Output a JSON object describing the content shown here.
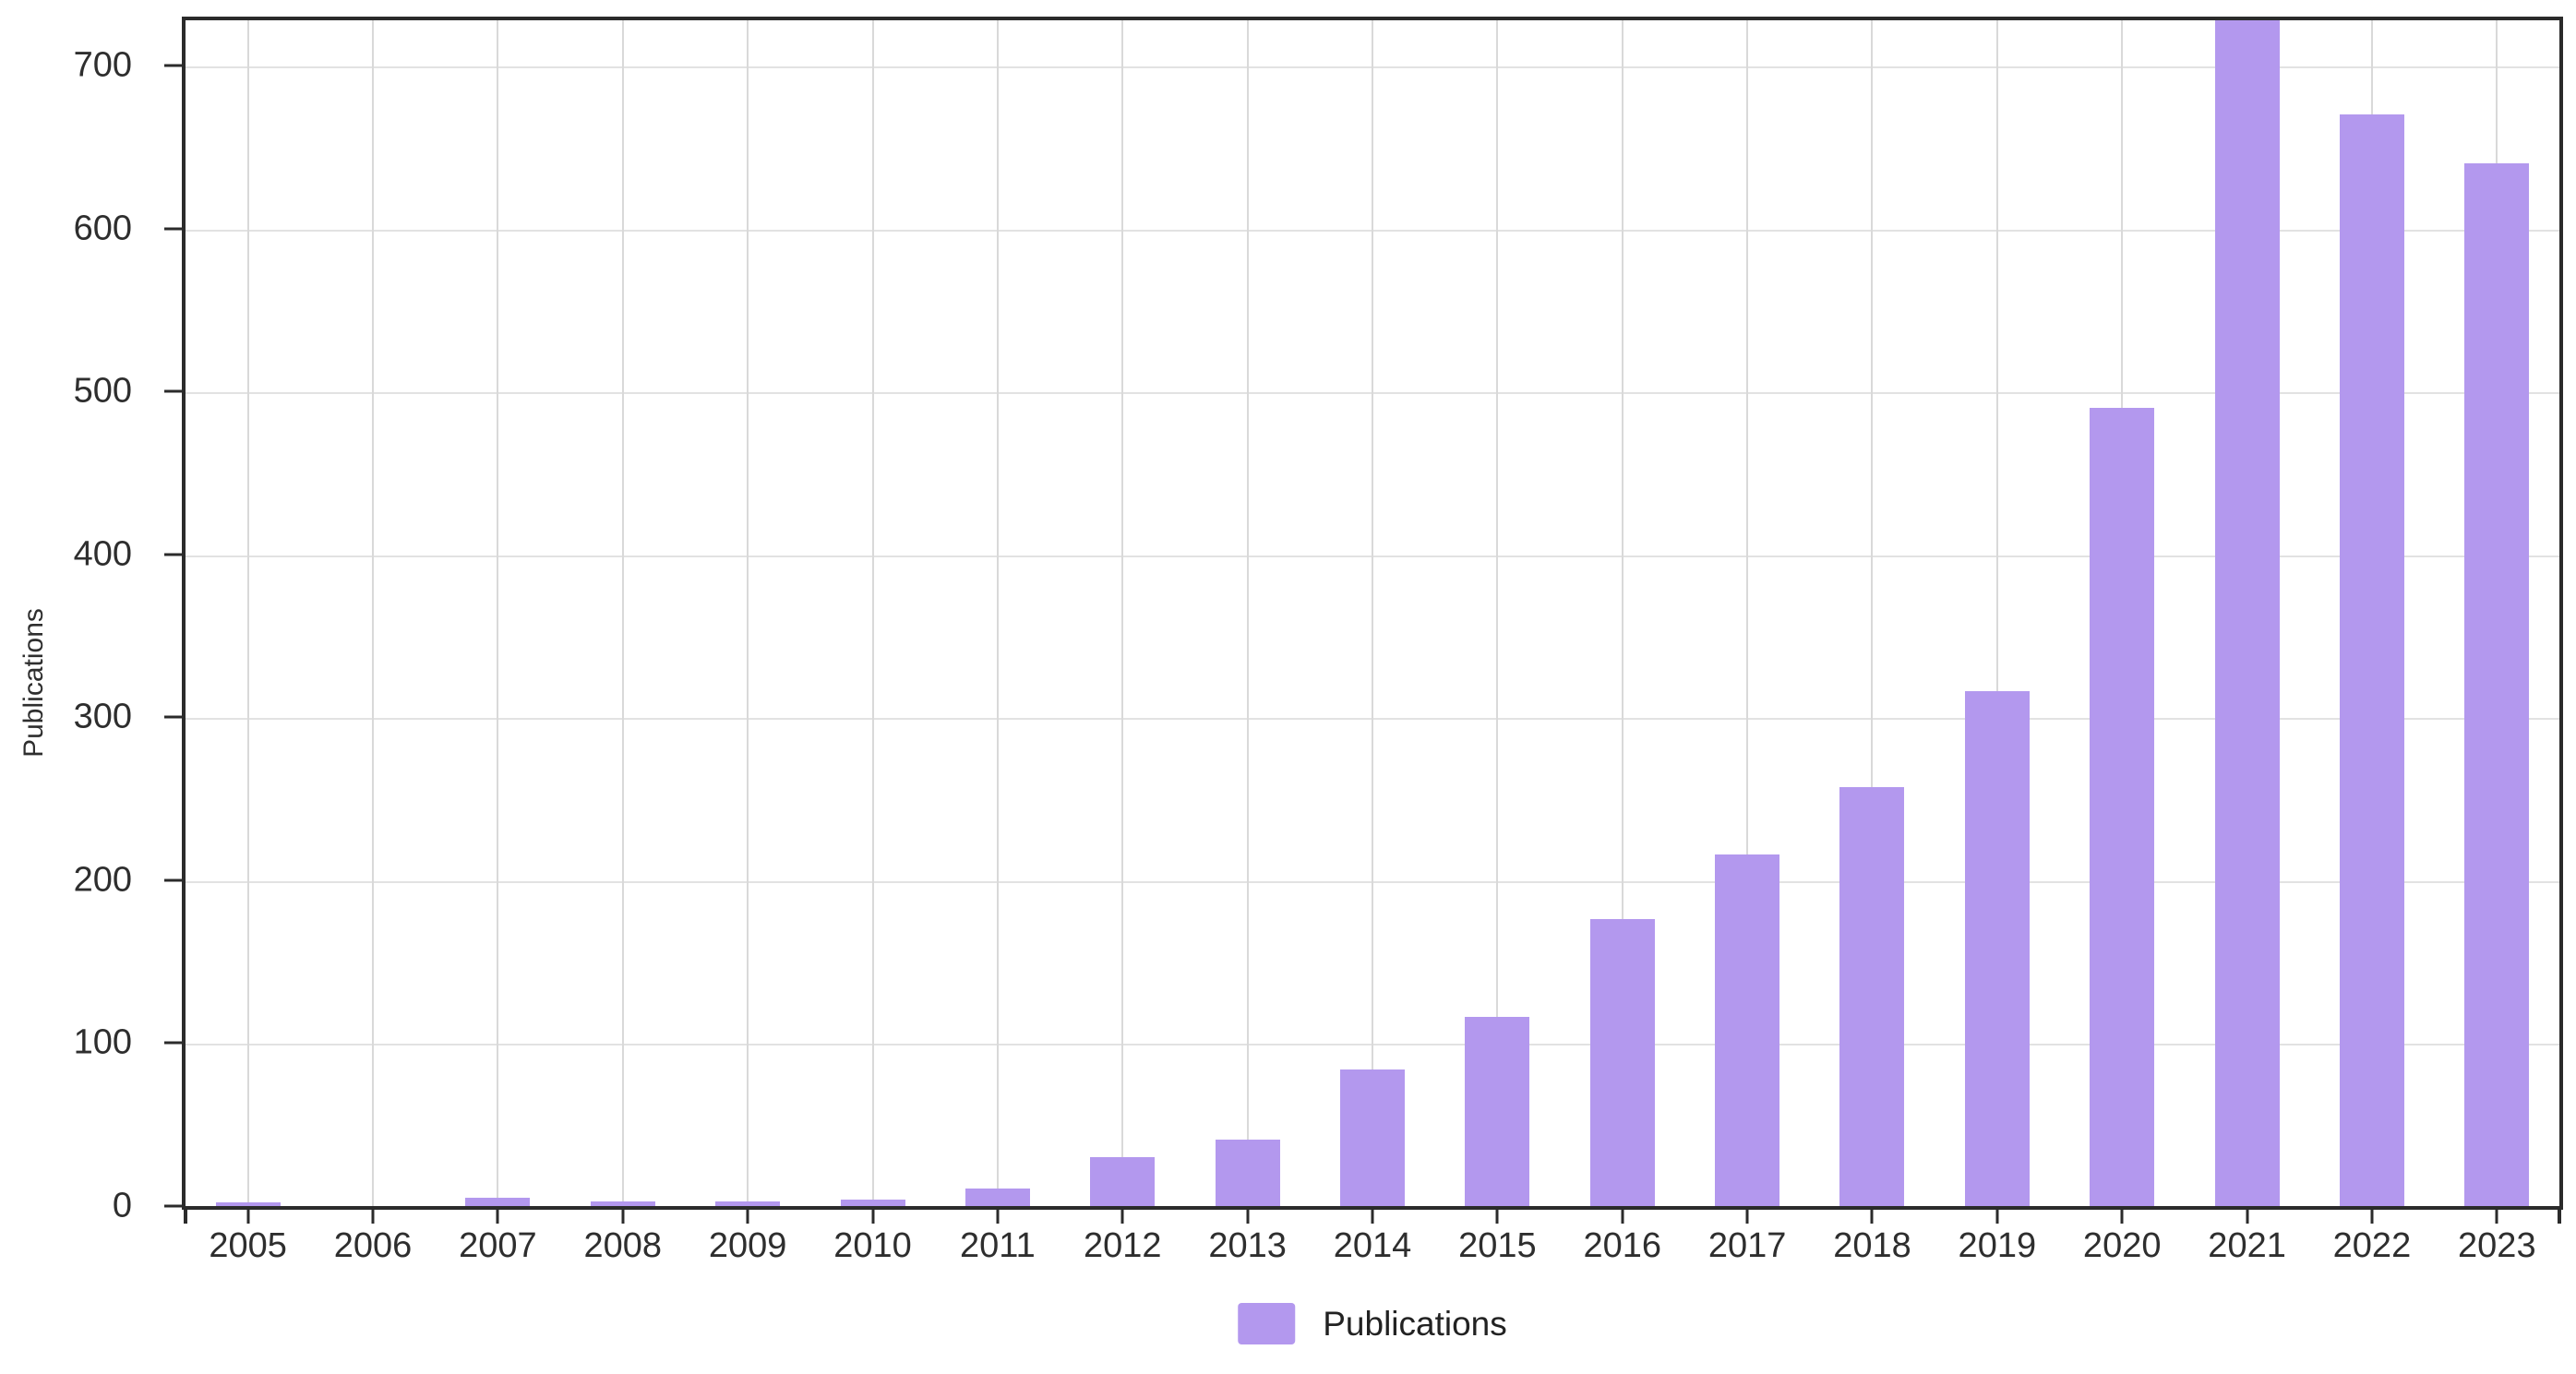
{
  "chart_data": {
    "type": "bar",
    "title": "",
    "xlabel": "",
    "ylabel": "Publications",
    "categories": [
      "2005",
      "2006",
      "2007",
      "2008",
      "2009",
      "2010",
      "2011",
      "2012",
      "2013",
      "2014",
      "2015",
      "2016",
      "2017",
      "2018",
      "2019",
      "2020",
      "2021",
      "2022",
      "2023"
    ],
    "series": [
      {
        "name": "Publications",
        "values": [
          2,
          0,
          5,
          3,
          3,
          4,
          11,
          30,
          41,
          84,
          116,
          176,
          216,
          257,
          316,
          490,
          728,
          670,
          640
        ]
      }
    ],
    "ylim": [
      0,
      728
    ],
    "yticks": [
      0,
      100,
      200,
      300,
      400,
      500,
      600,
      700
    ],
    "grid": true,
    "legend_position": "bottom-center",
    "bar_color": "#b398ee",
    "axis_color": "#2b2b2b",
    "grid_color_h": "#e2e2e2",
    "grid_color_v": "#d9d9d9",
    "text_color": "#2e2e2e",
    "background_color": "#ffffff"
  }
}
